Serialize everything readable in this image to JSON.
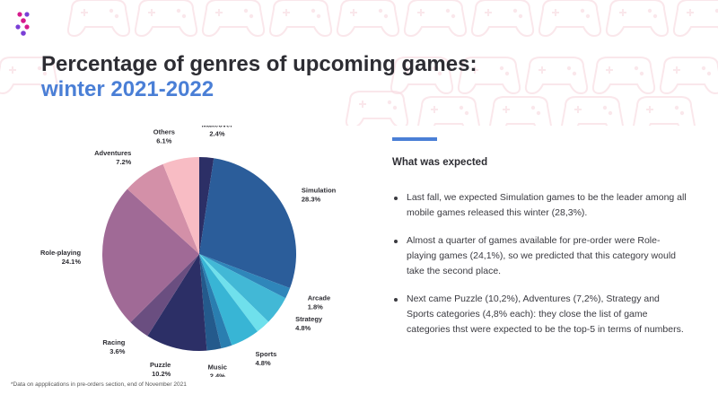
{
  "title": {
    "line1": "Percentage of genres of upcoming games:",
    "line2": "winter 2021-2022"
  },
  "colors": {
    "accent": "#4a7fd6",
    "title": "#2d2d33",
    "logo": "#d61a8c",
    "pattern": "#f9dde3"
  },
  "icons": {
    "logo": "brand-logo-icon",
    "pattern": "gamepad-icon"
  },
  "chart_data": {
    "type": "pie",
    "title": "Percentage of genres of upcoming games: winter 2021-2022",
    "unit": "%",
    "start": "top",
    "direction": "clockwise",
    "slices": [
      {
        "label": "Makeover",
        "value": 2.4,
        "display": "2.4%",
        "color": "#2c2f66"
      },
      {
        "label": "Simulation",
        "value": 28.3,
        "display": "28.3%",
        "color": "#2b5d9a"
      },
      {
        "label": "Arcade",
        "value": 1.8,
        "display": "1.8%",
        "color": "#2f86ba"
      },
      {
        "label": "Strategy",
        "value": 4.8,
        "display": "4.8%",
        "color": "#42b8d6"
      },
      {
        "label": "",
        "value": 2.4,
        "display": "",
        "color": "#6fe0ec"
      },
      {
        "label": "Sports",
        "value": 4.8,
        "display": "4.8%",
        "color": "#38b5d5"
      },
      {
        "label": "",
        "value": 1.8,
        "display": "",
        "color": "#2a7eb0"
      },
      {
        "label": "Music",
        "value": 2.4,
        "display": "2.4%",
        "color": "#245a8c"
      },
      {
        "label": "Puzzle",
        "value": 10.2,
        "display": "10.2%",
        "color": "#2c2f66"
      },
      {
        "label": "Racing",
        "value": 3.6,
        "display": "3.6%",
        "color": "#6a4e80"
      },
      {
        "label": "Role-playing",
        "value": 24.1,
        "display": "24.1%",
        "color": "#a06a96"
      },
      {
        "label": "Adventures",
        "value": 7.2,
        "display": "7.2%",
        "color": "#d390a8"
      },
      {
        "label": "Others",
        "value": 6.1,
        "display": "6.1%",
        "color": "#f8bcc4"
      }
    ]
  },
  "panel": {
    "heading": "What was expected",
    "bullets": [
      "Last fall, we expected Simulation games to be the leader among all mobile games released this winter (28,3%).",
      "Almost a quarter of games available for pre-order were Role-playing games (24,1%), so we predicted that this category would take the second place.",
      "Next came Puzzle (10,2%), Adventures (7,2%), Strategy and Sports categories (4,8% each): they close the list of game categories thst were expected to be the top-5 in terms of numbers."
    ]
  },
  "footnote": "*Data on appplications in pre-orders section, end of November 2021"
}
